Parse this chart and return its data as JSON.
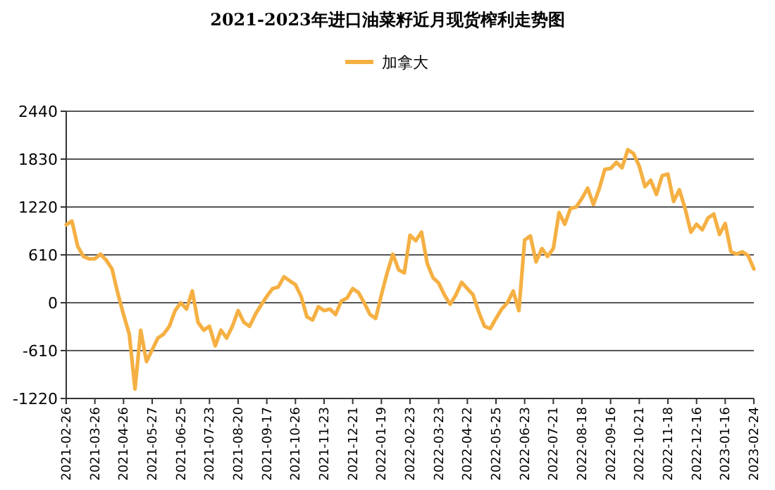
{
  "chart_data": {
    "type": "line",
    "title": "2021-2023年进口油菜籽近月现货榨利走势图",
    "categories": [
      "2021-02-26",
      null,
      null,
      null,
      null,
      "2021-03-26",
      null,
      null,
      null,
      null,
      "2021-04-26",
      null,
      null,
      null,
      null,
      "2021-05-27",
      null,
      null,
      null,
      null,
      "2021-06-25",
      null,
      null,
      null,
      null,
      "2021-07-23",
      null,
      null,
      null,
      null,
      "2021-08-20",
      null,
      null,
      null,
      null,
      "2021-09-17",
      null,
      null,
      null,
      null,
      "2021-10-26",
      null,
      null,
      null,
      null,
      "2021-11-23",
      null,
      null,
      null,
      null,
      "2021-12-21",
      null,
      null,
      null,
      null,
      "2022-01-19",
      null,
      null,
      null,
      null,
      "2022-02-23",
      null,
      null,
      null,
      null,
      "2022-03-23",
      null,
      null,
      null,
      null,
      "2022-04-22",
      null,
      null,
      null,
      null,
      "2022-05-25",
      null,
      null,
      null,
      null,
      "2022-06-23",
      null,
      null,
      null,
      null,
      "2022-07-21",
      null,
      null,
      null,
      null,
      "2022-08-18",
      null,
      null,
      null,
      null,
      "2022-09-16",
      null,
      null,
      null,
      null,
      "2022-10-21",
      null,
      null,
      null,
      null,
      "2022-11-18",
      null,
      null,
      null,
      null,
      "2022-12-16",
      null,
      null,
      null,
      null,
      "2023-01-16",
      null,
      null,
      null,
      null,
      "2023-02-24"
    ],
    "series": [
      {
        "name": "加拿大",
        "color": "#f5b043",
        "values": [
          994,
          1040,
          720,
          590,
          560,
          560,
          620,
          540,
          430,
          120,
          -150,
          -400,
          -1100,
          -350,
          -750,
          -600,
          -450,
          -400,
          -300,
          -100,
          0,
          -80,
          150,
          -250,
          -350,
          -300,
          -550,
          -350,
          -450,
          -300,
          -100,
          -250,
          -300,
          -150,
          -30,
          80,
          180,
          200,
          330,
          280,
          230,
          80,
          -180,
          -220,
          -50,
          -100,
          -80,
          -150,
          20,
          60,
          180,
          130,
          0,
          -150,
          -200,
          100,
          380,
          620,
          420,
          380,
          860,
          790,
          900,
          500,
          320,
          250,
          100,
          -20,
          100,
          260,
          180,
          100,
          -120,
          -300,
          -330,
          -200,
          -80,
          0,
          150,
          -100,
          800,
          850,
          520,
          690,
          590,
          690,
          1150,
          1000,
          1200,
          1220,
          1330,
          1460,
          1250,
          1450,
          1700,
          1710,
          1790,
          1720,
          1950,
          1900,
          1740,
          1480,
          1560,
          1380,
          1620,
          1640,
          1290,
          1440,
          1200,
          900,
          1000,
          930,
          1080,
          1130,
          870,
          1010,
          650,
          620,
          650,
          600,
          430
        ]
      }
    ],
    "ylim": [
      -1220,
      2440
    ],
    "yticks": [
      -1220,
      -610,
      0,
      610,
      1220,
      1830,
      2440
    ],
    "grid": "y",
    "legend": "top"
  }
}
